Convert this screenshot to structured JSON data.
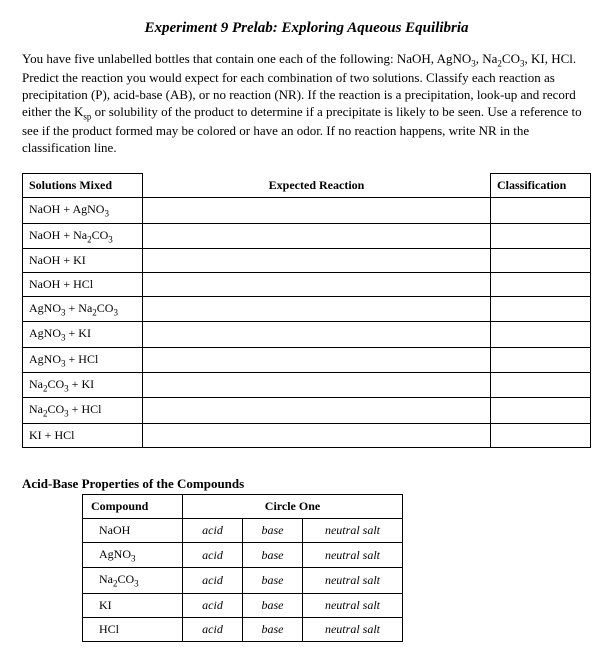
{
  "title": "Experiment 9 Prelab: Exploring Aqueous Equilibria",
  "intro_parts": {
    "p1": "You have five unlabelled bottles that contain one each of the following: NaOH, AgNO",
    "p2": ", Na",
    "p3": "CO",
    "p4": ", KI, HCl.  Predict the reaction you would expect for each combination of two solutions. Classify each reaction as precipitation (P), acid-base (AB), or no reaction (NR). If the reaction is a precipitation, look-up and record either the K",
    "p5": " or solubility of the product to determine if a precipitate is likely to be seen. Use a reference to see if the product formed may be colored or have an odor. If no reaction happens, write NR in the classification line.",
    "sub3": "3",
    "sub2": "2",
    "subsp": "sp"
  },
  "reaction_headers": {
    "solutions": "Solutions Mixed",
    "expected": "Expected Reaction",
    "classification": "Classification"
  },
  "reactions": [
    {
      "a": "NaOH",
      "b": "AgNO",
      "bsub": "3"
    },
    {
      "a": "NaOH",
      "b": "Na",
      "bsub": "2",
      "c": "CO",
      "csub": "3"
    },
    {
      "a": "NaOH",
      "b": "KI"
    },
    {
      "a": "NaOH",
      "b": "HCl"
    },
    {
      "a": "AgNO",
      "asub": "3",
      "b": "Na",
      "bsub": "2",
      "c": "CO",
      "csub": "3"
    },
    {
      "a": "AgNO",
      "asub": "3",
      "b": "KI"
    },
    {
      "a": "AgNO",
      "asub": "3",
      "b": "HCl"
    },
    {
      "a": "Na",
      "asub": "2",
      "a2": "CO",
      "a2sub": "3",
      "b": "KI"
    },
    {
      "a": "Na",
      "asub": "2",
      "a2": "CO",
      "a2sub": "3",
      "b": "HCl"
    },
    {
      "a": "KI",
      "b": "HCl"
    }
  ],
  "acidbase_heading": "Acid-Base Properties of the Compounds",
  "acidbase_headers": {
    "compound": "Compound",
    "circle": "Circle One"
  },
  "acidbase_options": {
    "acid": "acid",
    "base": "base",
    "neutral": "neutral salt"
  },
  "compounds": [
    {
      "n": "NaOH"
    },
    {
      "n": "AgNO",
      "s": "3"
    },
    {
      "n": "Na",
      "s": "2",
      "n2": "CO",
      "s2": "3"
    },
    {
      "n": "KI"
    },
    {
      "n": "HCl"
    }
  ]
}
